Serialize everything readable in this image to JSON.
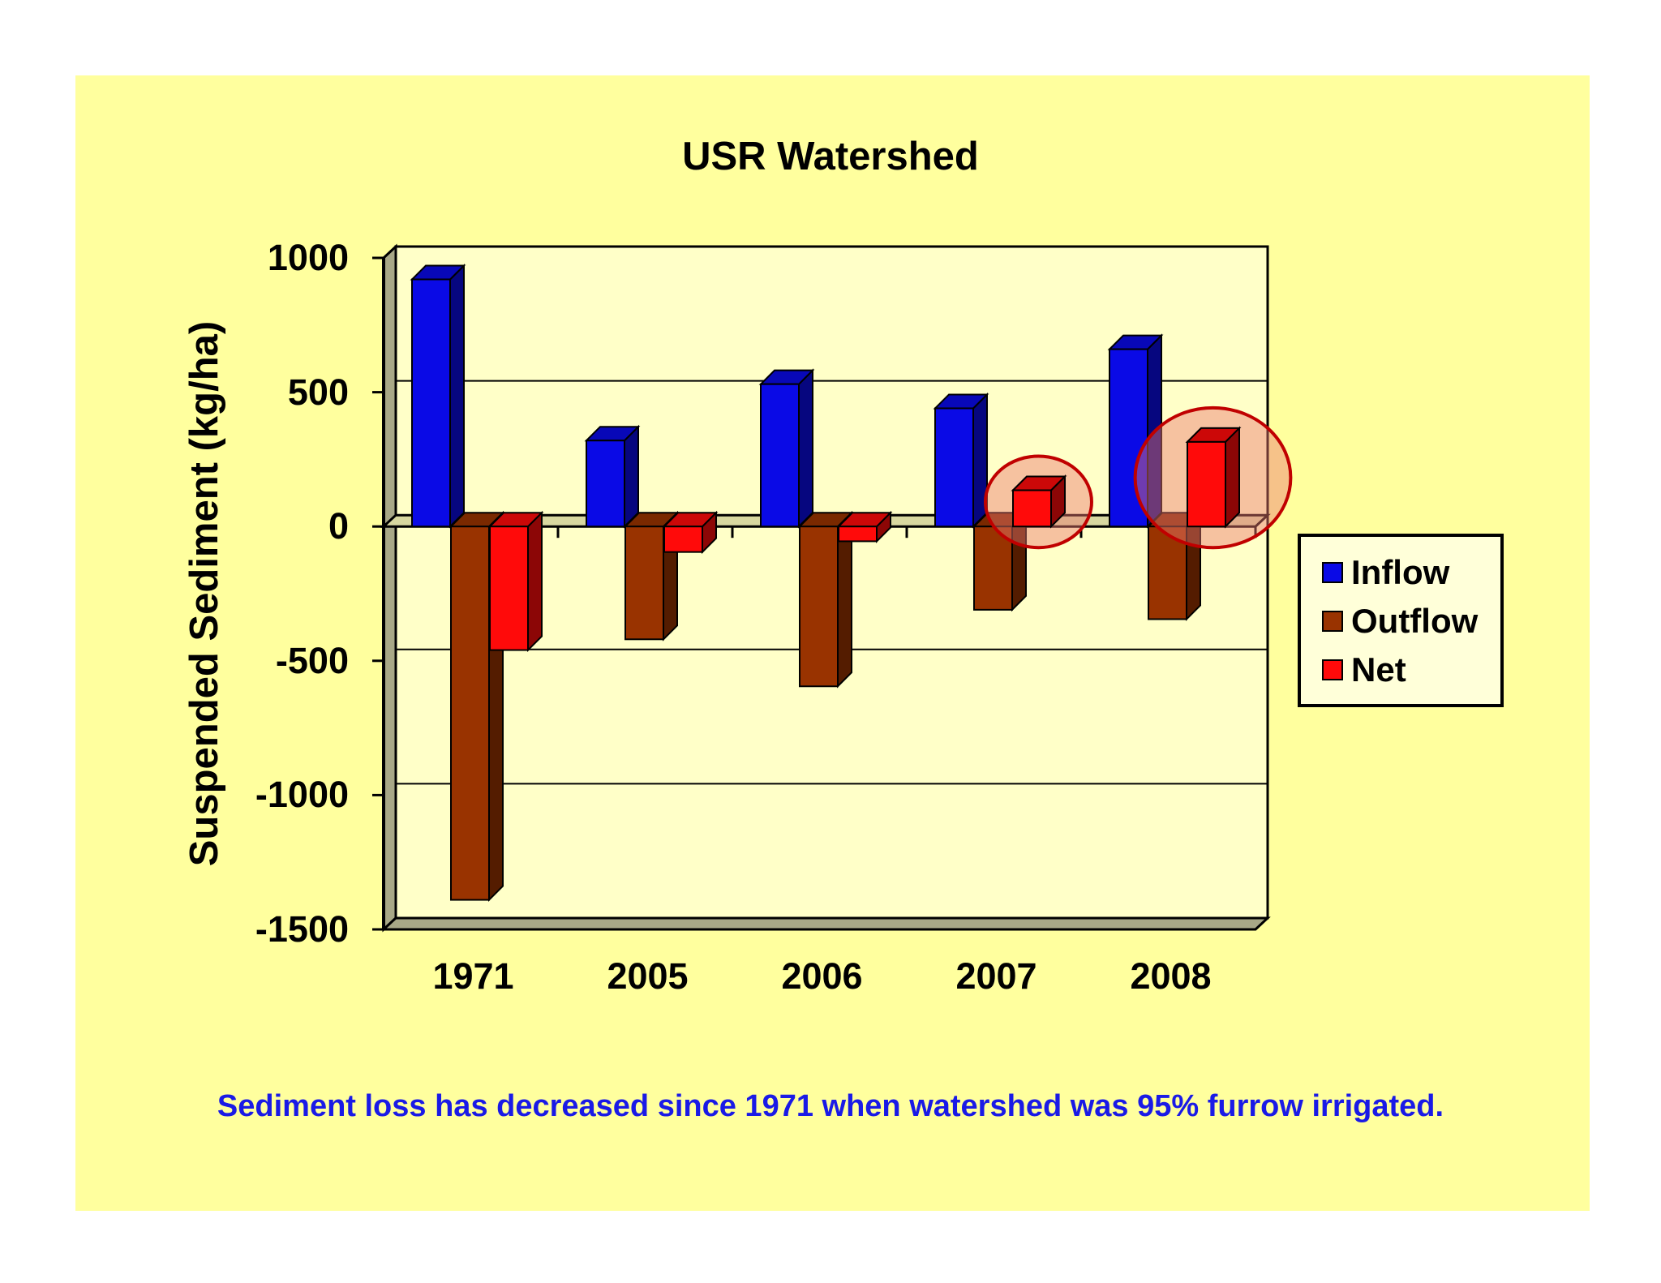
{
  "chart_data": {
    "type": "bar",
    "title": "USR Watershed",
    "xlabel": "",
    "ylabel": "Suspended Sediment (kg/ha)",
    "categories": [
      "1971",
      "2005",
      "2006",
      "2007",
      "2008"
    ],
    "series": [
      {
        "name": "Inflow",
        "color": "#0a0ae6",
        "values": [
          920,
          320,
          530,
          440,
          660
        ]
      },
      {
        "name": "Outflow",
        "color": "#993300",
        "values": [
          -1390,
          -420,
          -595,
          -310,
          -345
        ]
      },
      {
        "name": "Net",
        "color": "#ff0a0a",
        "values": [
          -460,
          -95,
          -55,
          135,
          315
        ]
      }
    ],
    "ylim": [
      -1500,
      1000
    ],
    "yticks": [
      1000,
      500,
      0,
      -500,
      -1000,
      -1500
    ],
    "grid": true,
    "legend_position": "right",
    "style": "3d",
    "highlighted": [
      {
        "series": "Net",
        "category": "2007"
      },
      {
        "series": "Net",
        "category": "2008"
      }
    ]
  },
  "caption": "Sediment loss has decreased since 1971 when watershed was 95% furrow irrigated."
}
